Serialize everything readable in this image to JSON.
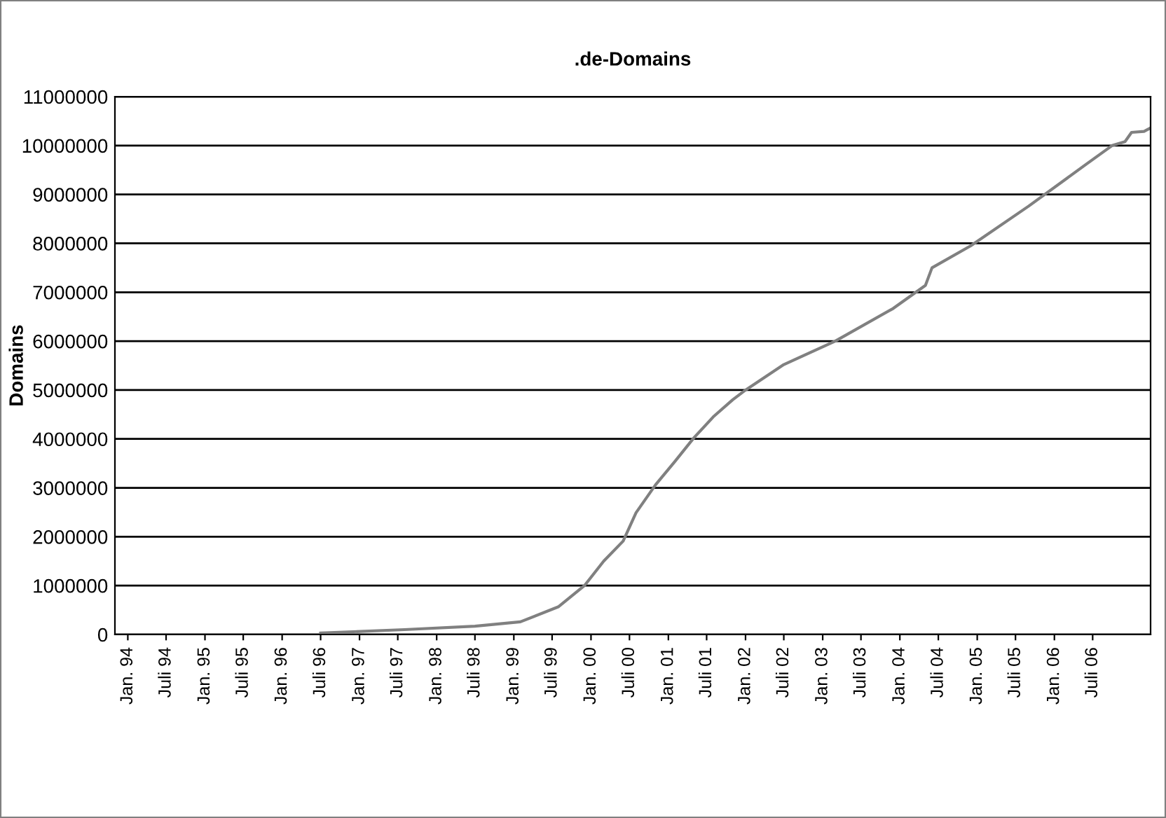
{
  "chart_data": {
    "type": "line",
    "title": ".de-Domains",
    "ylabel": "Domains",
    "x": [
      "1996-07",
      "1997-08",
      "1998-07",
      "1999-02",
      "1999-08",
      "1999-12",
      "2000-03",
      "2000-06",
      "2000-08",
      "2000-11",
      "2001-02",
      "2001-05",
      "2001-08",
      "2001-11",
      "2002-01",
      "2002-07",
      "2003-03",
      "2003-12",
      "2004-05",
      "2004-06",
      "2004-12",
      "2005-09",
      "2006-06",
      "2006-10",
      "2006-12",
      "2007-01",
      "2007-03",
      "2007-04"
    ],
    "series": [
      {
        "color": "#808080",
        "values": [
          30000,
          100000,
          170000,
          260000,
          570000,
          1000000,
          1500000,
          1910000,
          2490000,
          3060000,
          3540000,
          4020000,
          4450000,
          4800000,
          5000000,
          5520000,
          6000000,
          6670000,
          7140000,
          7500000,
          7950000,
          8760000,
          9620000,
          10000000,
          10080000,
          10270000,
          10290000,
          10360000
        ]
      }
    ],
    "xlim": [
      "1993-11",
      "2007-04"
    ],
    "xticks": [
      {
        "value": "1994-01",
        "label": "Jan. 94"
      },
      {
        "value": "1994-07",
        "label": "Juli 94"
      },
      {
        "value": "1995-01",
        "label": "Jan. 95"
      },
      {
        "value": "1995-07",
        "label": "Juli 95"
      },
      {
        "value": "1996-01",
        "label": "Jan. 96"
      },
      {
        "value": "1996-07",
        "label": "Juli 96"
      },
      {
        "value": "1997-01",
        "label": "Jan. 97"
      },
      {
        "value": "1997-07",
        "label": "Juli 97"
      },
      {
        "value": "1998-01",
        "label": "Jan. 98"
      },
      {
        "value": "1998-07",
        "label": "Juli 98"
      },
      {
        "value": "1999-01",
        "label": "Jan. 99"
      },
      {
        "value": "1999-07",
        "label": "Juli 99"
      },
      {
        "value": "2000-01",
        "label": "Jan. 00"
      },
      {
        "value": "2000-07",
        "label": "Juli 00"
      },
      {
        "value": "2001-01",
        "label": "Jan. 01"
      },
      {
        "value": "2001-07",
        "label": "Juli 01"
      },
      {
        "value": "2002-01",
        "label": "Jan. 02"
      },
      {
        "value": "2002-07",
        "label": "Juli 02"
      },
      {
        "value": "2003-01",
        "label": "Jan. 03"
      },
      {
        "value": "2003-07",
        "label": "Juli 03"
      },
      {
        "value": "2004-01",
        "label": "Jan. 04"
      },
      {
        "value": "2004-07",
        "label": "Juli 04"
      },
      {
        "value": "2005-01",
        "label": "Jan. 05"
      },
      {
        "value": "2005-07",
        "label": "Juli 05"
      },
      {
        "value": "2006-01",
        "label": "Jan. 06"
      },
      {
        "value": "2006-07",
        "label": "Juli 06"
      }
    ],
    "ylim": [
      0,
      11000000
    ],
    "yticks": [
      0,
      1000000,
      2000000,
      3000000,
      4000000,
      5000000,
      6000000,
      7000000,
      8000000,
      9000000,
      10000000,
      11000000
    ],
    "grid": "y",
    "marker": "none",
    "line_style": "solid"
  }
}
